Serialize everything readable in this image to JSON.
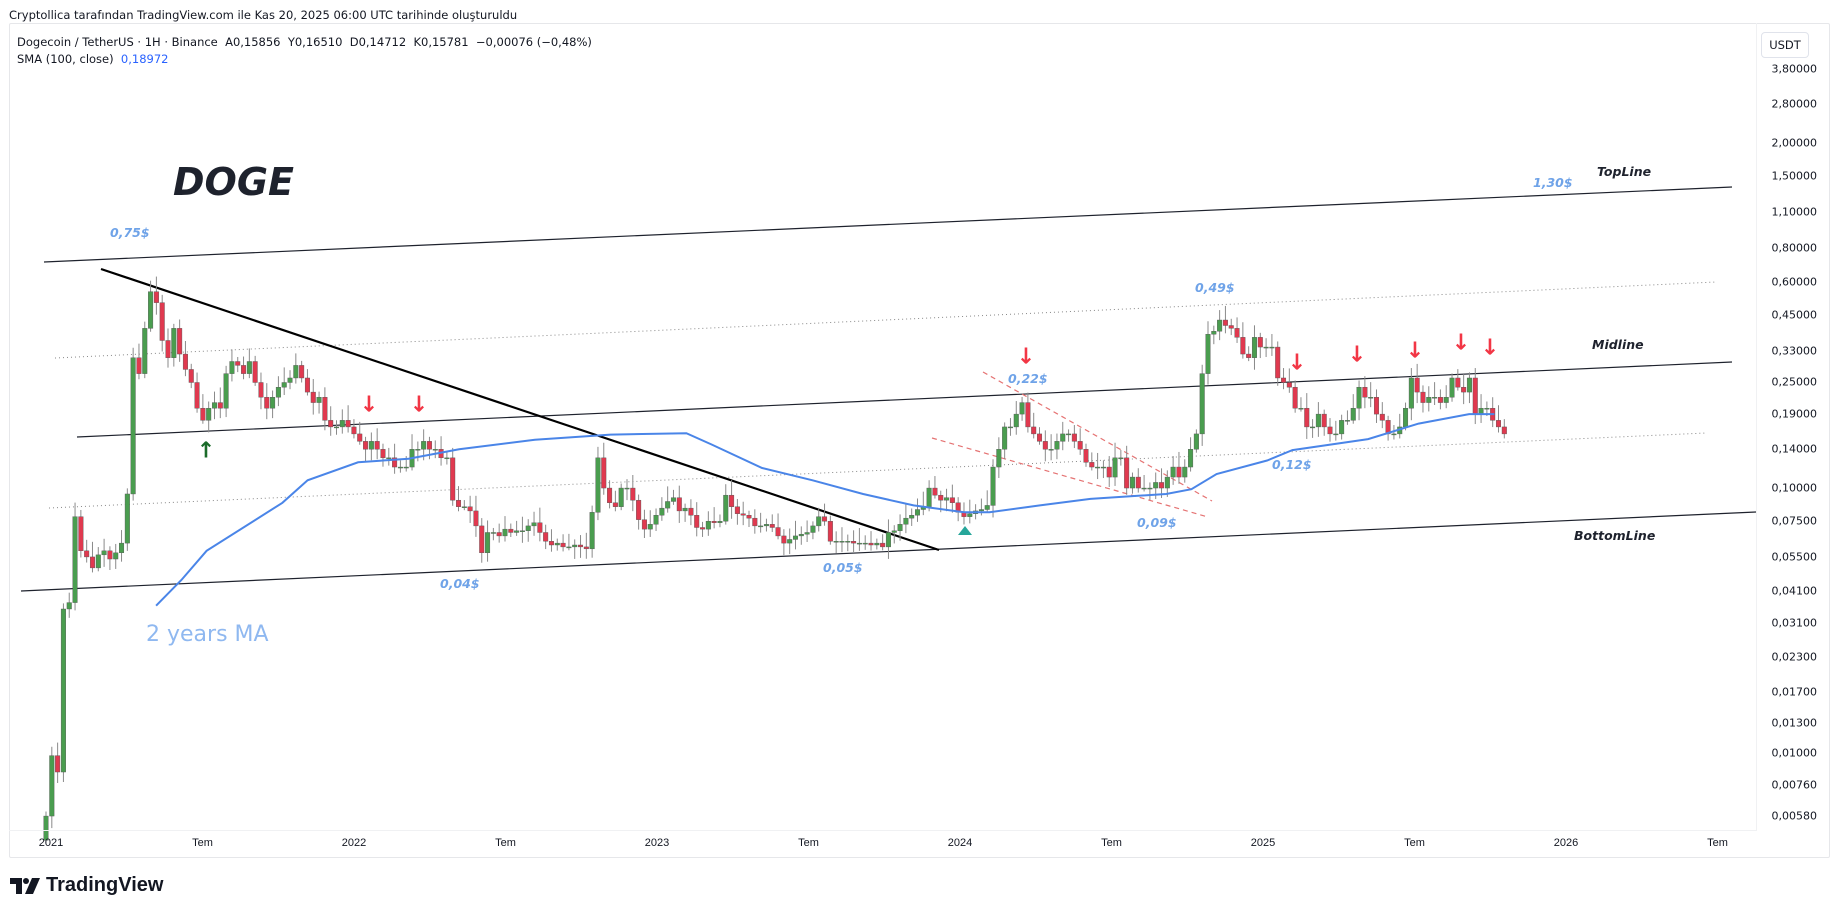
{
  "credit": "Cryptollica tarafından TradingView.com ile Kas 20, 2025 06:00 UTC tarihinde oluşturuldu",
  "legend": {
    "symbol": "Dogecoin / TetherUS · 1H · Binance",
    "open": "A0,15856",
    "high": "Y0,16510",
    "low": "D0,14712",
    "close": "K0,15781",
    "change": "−0,00076 (−0,48%)",
    "sma_label": "SMA (100, close)",
    "sma_value": "0,18972"
  },
  "currency": "USDT",
  "brand": "TradingView",
  "colors": {
    "up": "#4a9d4f",
    "down": "#e0394f",
    "sma": "#4a85e8",
    "label_blue": "#6fa3e8",
    "arrow_red": "#f23645",
    "arrow_green": "#1b6b2a",
    "triangle": "#26a69a"
  },
  "annotations": {
    "title": "DOGE",
    "ma_note": "2 years MA",
    "top_line": "TopLine",
    "mid_line": "Midline",
    "bottom_line": "BottomLine",
    "p075": "0,75$",
    "p130": "1,30$",
    "p049": "0,49$",
    "p022": "0,22$",
    "p012": "0,12$",
    "p009": "0,09$",
    "p004": "0,04$",
    "p005": "0,05$"
  },
  "chart_data": {
    "type": "candlestick",
    "scale": "log",
    "y_ticks": [
      "3,80000",
      "2,80000",
      "2,00000",
      "1,50000",
      "1,10000",
      "0,80000",
      "0,60000",
      "0,45000",
      "0,33000",
      "0,25000",
      "0,19000",
      "0,14000",
      "0,10000",
      "0,07500",
      "0,05500",
      "0,04100",
      "0,03100",
      "0,02300",
      "0,01700",
      "0,01300",
      "0,01000",
      "0,00760",
      "0,00580"
    ],
    "y_tick_values": [
      3.8,
      2.8,
      2.0,
      1.5,
      1.1,
      0.8,
      0.6,
      0.45,
      0.33,
      0.25,
      0.19,
      0.14,
      0.1,
      0.075,
      0.055,
      0.041,
      0.031,
      0.023,
      0.017,
      0.013,
      0.01,
      0.0076,
      0.0058
    ],
    "x_ticks": [
      "2021",
      "Tem",
      "2022",
      "Tem",
      "2023",
      "Tem",
      "2024",
      "Tem",
      "2025",
      "Tem",
      "2026",
      "Tem"
    ],
    "x_range": [
      "2021-01",
      "2026-10"
    ],
    "first_open": 0.0047,
    "weekly_close": [
      0.0058,
      0.0098,
      0.0085,
      0.035,
      0.037,
      0.078,
      0.058,
      0.055,
      0.05,
      0.056,
      0.058,
      0.054,
      0.057,
      0.062,
      0.095,
      0.31,
      0.27,
      0.4,
      0.55,
      0.5,
      0.36,
      0.31,
      0.4,
      0.32,
      0.28,
      0.25,
      0.2,
      0.18,
      0.2,
      0.21,
      0.2,
      0.27,
      0.3,
      0.29,
      0.27,
      0.3,
      0.25,
      0.22,
      0.2,
      0.22,
      0.24,
      0.25,
      0.26,
      0.29,
      0.26,
      0.23,
      0.21,
      0.22,
      0.18,
      0.17,
      0.17,
      0.18,
      0.17,
      0.16,
      0.15,
      0.14,
      0.15,
      0.14,
      0.13,
      0.13,
      0.12,
      0.12,
      0.12,
      0.14,
      0.14,
      0.15,
      0.14,
      0.14,
      0.13,
      0.13,
      0.09,
      0.085,
      0.085,
      0.082,
      0.072,
      0.057,
      0.068,
      0.068,
      0.066,
      0.07,
      0.068,
      0.069,
      0.069,
      0.072,
      0.074,
      0.068,
      0.063,
      0.061,
      0.062,
      0.06,
      0.06,
      0.061,
      0.06,
      0.059,
      0.081,
      0.13,
      0.1,
      0.088,
      0.085,
      0.1,
      0.1,
      0.09,
      0.076,
      0.07,
      0.073,
      0.079,
      0.084,
      0.089,
      0.092,
      0.082,
      0.084,
      0.079,
      0.071,
      0.07,
      0.075,
      0.074,
      0.075,
      0.094,
      0.085,
      0.08,
      0.079,
      0.077,
      0.072,
      0.072,
      0.073,
      0.071,
      0.066,
      0.062,
      0.064,
      0.066,
      0.067,
      0.068,
      0.072,
      0.078,
      0.075,
      0.063,
      0.063,
      0.063,
      0.063,
      0.062,
      0.062,
      0.062,
      0.061,
      0.062,
      0.06,
      0.068,
      0.069,
      0.073,
      0.077,
      0.079,
      0.083,
      0.085,
      0.1,
      0.094,
      0.09,
      0.092,
      0.088,
      0.081,
      0.078,
      0.08,
      0.082,
      0.083,
      0.086,
      0.12,
      0.14,
      0.17,
      0.17,
      0.19,
      0.21,
      0.17,
      0.16,
      0.15,
      0.14,
      0.14,
      0.15,
      0.16,
      0.16,
      0.15,
      0.14,
      0.125,
      0.12,
      0.12,
      0.12,
      0.11,
      0.13,
      0.13,
      0.1,
      0.11,
      0.1,
      0.1,
      0.1,
      0.105,
      0.1,
      0.11,
      0.12,
      0.11,
      0.12,
      0.14,
      0.16,
      0.27,
      0.38,
      0.39,
      0.43,
      0.41,
      0.4,
      0.37,
      0.32,
      0.31,
      0.37,
      0.34,
      0.34,
      0.34,
      0.26,
      0.25,
      0.24,
      0.2,
      0.2,
      0.17,
      0.17,
      0.19,
      0.17,
      0.16,
      0.16,
      0.18,
      0.18,
      0.2,
      0.24,
      0.22,
      0.22,
      0.19,
      0.18,
      0.16,
      0.16,
      0.17,
      0.2,
      0.26,
      0.23,
      0.21,
      0.22,
      0.22,
      0.21,
      0.22,
      0.26,
      0.24,
      0.23,
      0.26,
      0.19,
      0.2,
      0.2,
      0.18,
      0.17,
      0.16
    ],
    "sma": [
      {
        "date": "2021-05",
        "value": 0.036
      },
      {
        "date": "2021-06",
        "value": 0.045
      },
      {
        "date": "2021-07",
        "value": 0.058
      },
      {
        "date": "2021-10",
        "value": 0.088
      },
      {
        "date": "2021-11",
        "value": 0.107
      },
      {
        "date": "2022-01",
        "value": 0.125
      },
      {
        "date": "2022-03",
        "value": 0.129
      },
      {
        "date": "2022-05",
        "value": 0.14
      },
      {
        "date": "2022-08",
        "value": 0.152
      },
      {
        "date": "2022-11",
        "value": 0.159
      },
      {
        "date": "2023-02",
        "value": 0.161
      },
      {
        "date": "2023-03",
        "value": 0.146
      },
      {
        "date": "2023-05",
        "value": 0.119
      },
      {
        "date": "2023-07",
        "value": 0.107
      },
      {
        "date": "2023-09",
        "value": 0.095
      },
      {
        "date": "2023-11",
        "value": 0.086
      },
      {
        "date": "2024-01",
        "value": 0.081
      },
      {
        "date": "2024-02",
        "value": 0.081
      },
      {
        "date": "2024-04",
        "value": 0.086
      },
      {
        "date": "2024-06",
        "value": 0.091
      },
      {
        "date": "2024-09",
        "value": 0.095
      },
      {
        "date": "2024-10",
        "value": 0.099
      },
      {
        "date": "2024-11",
        "value": 0.113
      },
      {
        "date": "2025-01",
        "value": 0.127
      },
      {
        "date": "2025-02",
        "value": 0.139
      },
      {
        "date": "2025-05",
        "value": 0.153
      },
      {
        "date": "2025-07",
        "value": 0.175
      },
      {
        "date": "2025-09",
        "value": 0.19
      },
      {
        "date": "2025-10",
        "value": 0.19
      }
    ]
  }
}
